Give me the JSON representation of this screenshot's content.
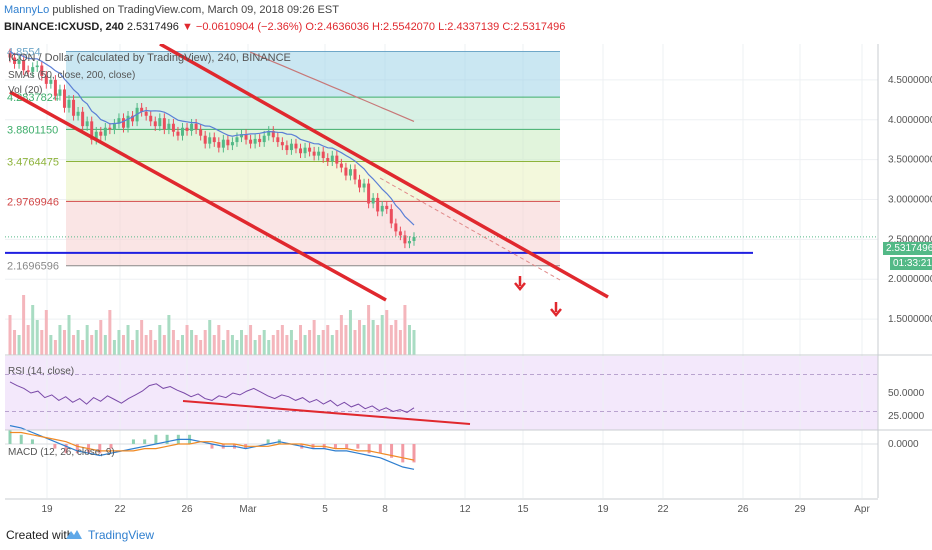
{
  "header": {
    "author": "MannyLo",
    "published": "published on TradingView.com, March 09, 2018 09:26 EST",
    "symbol": "BINANCE:ICXUSD, 240",
    "last": "2.5317496",
    "change": "−0.0610904 (−2.36%)",
    "ohlc": "O:2.4636036 H:2.5542070 L:2.4337139 C:2.5317496"
  },
  "footer": {
    "created": "Created with",
    "brand": "TradingView"
  },
  "legend": {
    "title": "ICON / Dollar (calculated by TradingView), 240, BINANCE",
    "smas": "SMAs (50, close, 200, close)",
    "vol": "Vol (20)",
    "rsi": "RSI (14, close)",
    "macd": "MACD (12, 26, close, 9)"
  },
  "last_price_tag": "2.5317496",
  "countdown_tag": "01:33:21",
  "colors": {
    "up": "#53b987",
    "down": "#eb4d5c",
    "trendline": "#e0282e",
    "support": "#1f1fe0",
    "sma50": "#5b7fd6",
    "sma200": "#c77878",
    "rsi_line": "#7a4aa8",
    "macd_line": "#2f7fcf",
    "signal_line": "#f08a24"
  },
  "chart_data": [
    {
      "type": "candlestick",
      "panel": "price",
      "x_ticks": [
        "19",
        "22",
        "26",
        "Mar",
        "5",
        "8",
        "12",
        "15",
        "19",
        "22",
        "26",
        "29",
        "Apr"
      ],
      "y_ticks": [
        "4.5000000",
        "4.0000000",
        "3.5000000",
        "3.0000000",
        "2.5000000",
        "2.0000000",
        "1.5000000"
      ],
      "ylim": [
        1.05,
        4.95
      ],
      "fib_levels": [
        {
          "label": "4.8554",
          "value": 4.8554,
          "band": "#9fd3e8"
        },
        {
          "label": "4.2837824",
          "value": 4.2838,
          "band": "#b8e6cf"
        },
        {
          "label": "3.8801150",
          "value": 3.8801,
          "band": "#c9ebc0"
        },
        {
          "label": "3.4764475",
          "value": 3.4764,
          "band": "#e9f2bf"
        },
        {
          "label": "2.9769946",
          "value": 2.977,
          "band": "#f6cfcf"
        },
        {
          "label": "2.1696596",
          "value": 2.1697,
          "band": "#f6cfcf"
        }
      ],
      "support_level": 2.33,
      "closes": [
        4.78,
        4.7,
        4.75,
        4.62,
        4.6,
        4.66,
        4.68,
        4.55,
        4.45,
        4.5,
        4.3,
        4.38,
        4.15,
        4.25,
        4.05,
        4.1,
        3.92,
        3.98,
        3.75,
        3.85,
        3.8,
        3.9,
        3.88,
        3.95,
        4.02,
        3.9,
        4.05,
        3.98,
        4.15,
        4.1,
        4.05,
        3.98,
        3.92,
        4.02,
        3.88,
        3.95,
        3.85,
        3.8,
        3.9,
        3.86,
        3.95,
        3.88,
        3.8,
        3.7,
        3.78,
        3.72,
        3.65,
        3.75,
        3.68,
        3.72,
        3.78,
        3.82,
        3.75,
        3.7,
        3.76,
        3.72,
        3.8,
        3.86,
        3.78,
        3.72,
        3.68,
        3.62,
        3.7,
        3.64,
        3.58,
        3.65,
        3.6,
        3.55,
        3.6,
        3.52,
        3.48,
        3.55,
        3.45,
        3.4,
        3.3,
        3.38,
        3.25,
        3.15,
        3.2,
        2.95,
        3.02,
        2.85,
        2.92,
        2.88,
        2.7,
        2.6,
        2.55,
        2.45,
        2.48,
        2.53
      ]
    },
    {
      "type": "bar",
      "panel": "volume",
      "values": [
        8,
        5,
        4,
        12,
        6,
        10,
        7,
        5,
        9,
        4,
        3,
        6,
        5,
        8,
        4,
        5,
        3,
        6,
        4,
        5,
        7,
        4,
        9,
        3,
        5,
        4,
        6,
        3,
        5,
        7,
        4,
        5,
        3,
        6,
        4,
        8,
        5,
        3,
        4,
        6,
        5,
        4,
        3,
        5,
        7,
        4,
        6,
        3,
        5,
        4,
        3,
        5,
        4,
        6,
        3,
        4,
        5,
        3,
        4,
        5,
        6,
        4,
        5,
        3,
        6,
        4,
        5,
        7,
        4,
        5,
        6,
        4,
        5,
        8,
        6,
        9,
        5,
        7,
        6,
        10,
        7,
        6,
        8,
        9,
        6,
        7,
        5,
        10,
        6,
        5
      ]
    },
    {
      "type": "line",
      "panel": "rsi",
      "y_ticks": [
        "50.0000",
        "25.0000"
      ],
      "ylim": [
        10,
        90
      ],
      "bands": [
        30,
        70
      ],
      "values": [
        62,
        58,
        55,
        50,
        52,
        45,
        48,
        42,
        46,
        40,
        44,
        38,
        45,
        41,
        47,
        43,
        39,
        44,
        48,
        52,
        58,
        60,
        55,
        57,
        53,
        50,
        46,
        49,
        44,
        42,
        47,
        45,
        50,
        48,
        52,
        55,
        51,
        47,
        44,
        48,
        46,
        42,
        45,
        40,
        43,
        38,
        42,
        36,
        40,
        35,
        38,
        33,
        36,
        31,
        34,
        30,
        32,
        29,
        34
      ]
    },
    {
      "type": "line",
      "panel": "macd",
      "y_ticks": [
        "0.0000"
      ],
      "macd": [
        0.08,
        0.07,
        0.05,
        0.03,
        0.01,
        -0.01,
        -0.03,
        -0.04,
        -0.05,
        -0.04,
        -0.03,
        -0.02,
        -0.01,
        0.0,
        0.01,
        0.02,
        0.02,
        0.01,
        0.0,
        -0.01,
        -0.01,
        -0.02,
        -0.01,
        0.0,
        0.01,
        0.0,
        -0.01,
        -0.02,
        -0.02,
        -0.03,
        -0.03,
        -0.04,
        -0.05,
        -0.06,
        -0.08,
        -0.1,
        -0.11
      ],
      "signal": [
        0.05,
        0.05,
        0.04,
        0.03,
        0.02,
        0.01,
        -0.01,
        -0.02,
        -0.03,
        -0.03,
        -0.03,
        -0.03,
        -0.02,
        -0.02,
        -0.01,
        0.0,
        0.0,
        0.01,
        0.01,
        0.0,
        0.0,
        -0.01,
        -0.01,
        -0.01,
        0.0,
        0.0,
        0.0,
        -0.01,
        -0.01,
        -0.02,
        -0.02,
        -0.03,
        -0.03,
        -0.04,
        -0.05,
        -0.06,
        -0.07
      ]
    }
  ]
}
